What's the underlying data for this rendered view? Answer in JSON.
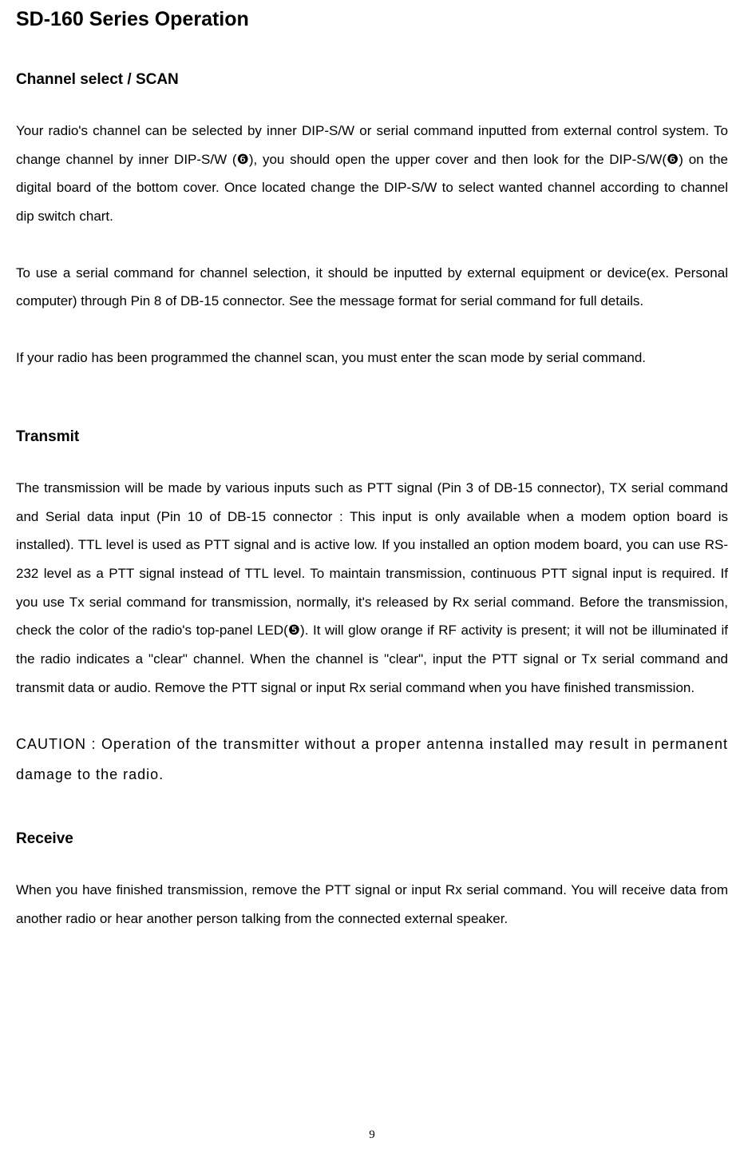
{
  "page": {
    "title": "SD-160 Series Operation",
    "number": "9"
  },
  "sections": {
    "channel": {
      "header": "Channel select / SCAN",
      "p1_a": "Your radio's channel can be selected by inner DIP-S/W or serial command inputted from external control system. To change channel by inner DIP-S/W (",
      "p1_sym1": "❻",
      "p1_b": "), you should open the upper cover and then look for the DIP-S/W(",
      "p1_sym2": "❻",
      "p1_c": ") on the digital board of the bottom cover. Once located change the DIP-S/W to select wanted channel according to channel dip switch chart.",
      "p2": "To use a serial command for channel selection, it should be inputted by external equipment or device(ex. Personal computer) through Pin 8 of DB-15 connector. See the message format for serial command for full details.",
      "p3": "If your radio has been programmed the channel scan, you must enter the scan mode by serial command."
    },
    "transmit": {
      "header": "Transmit",
      "p1_a": "The transmission will be made by various inputs such as PTT signal (Pin 3 of DB-15 connector), TX serial command and Serial data input (Pin 10 of DB-15 connector : This input is only available when a modem option board is installed). TTL level is used as PTT signal and is active low.  If you installed an option modem board, you can use RS-232 level as a PTT signal instead of TTL level. To maintain transmission, continuous PTT signal input is required. If you use Tx serial command for transmission, normally, it's released by Rx serial command. Before the transmission, check the color of the radio's top-panel LED(",
      "p1_sym": "❺",
      "p1_b": "). It will glow orange if RF activity is present; it will not be illuminated if the radio indicates a \"clear\" channel. When the channel is \"clear\", input the PTT signal or Tx serial command and transmit data or audio. Remove the PTT signal or input Rx serial command when you have finished transmission.",
      "caution": "CAUTION : Operation of the transmitter without a proper antenna installed may result in permanent damage to the radio."
    },
    "receive": {
      "header": "Receive",
      "p1": "When you have finished transmission, remove the PTT signal or input Rx serial command. You will receive data from another radio or hear another person talking from the connected external speaker."
    }
  },
  "styling": {
    "background_color": "#ffffff",
    "text_color": "#000000",
    "title_fontsize": 25,
    "header_fontsize": 19,
    "body_fontsize": 17,
    "caution_fontsize": 18,
    "line_height": 2.1
  }
}
